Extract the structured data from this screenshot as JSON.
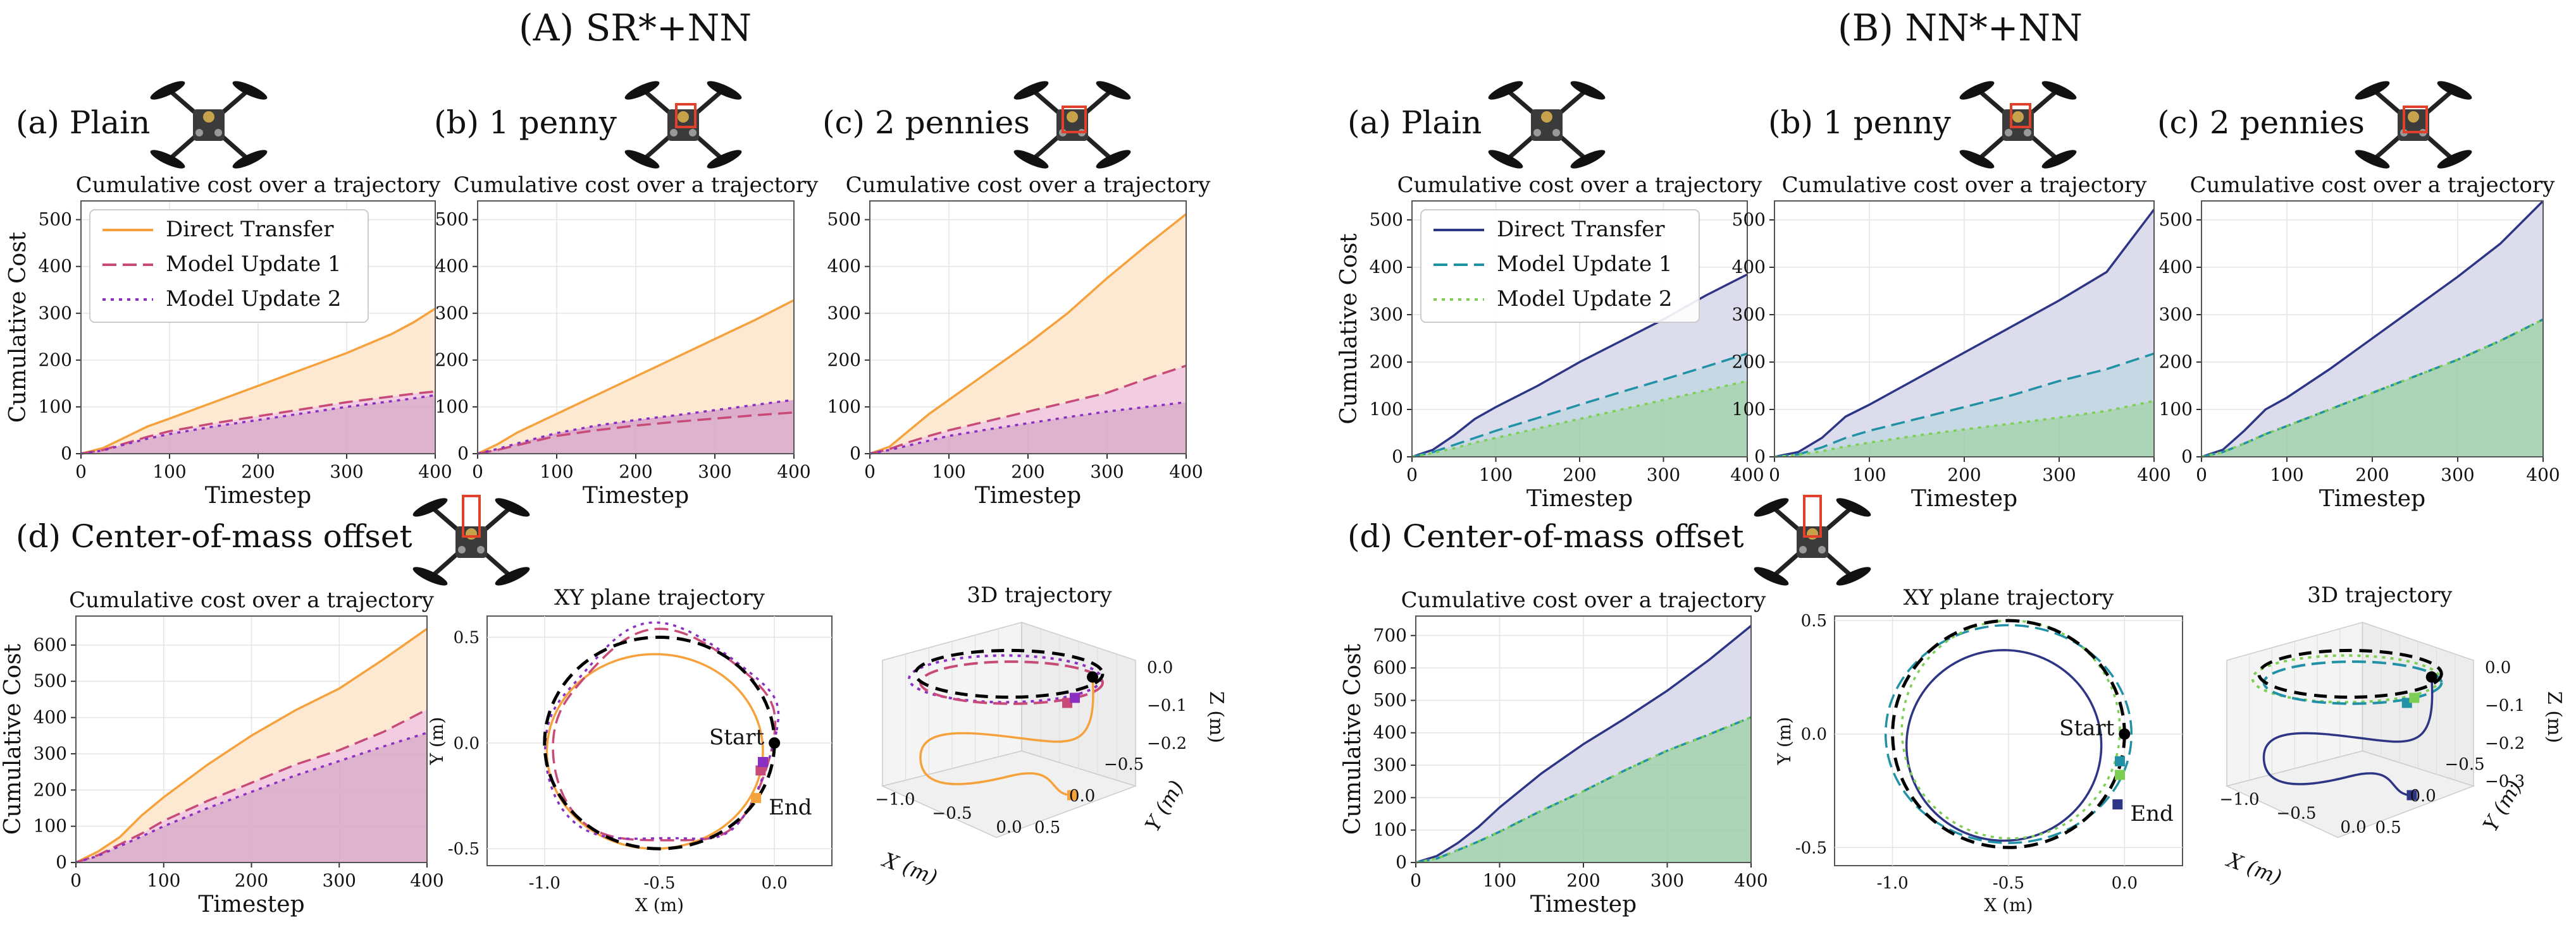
{
  "colors": {
    "A": {
      "direct": "#f6a23c",
      "mu1": "#c84a78",
      "mu2": "#8a2fc2",
      "fill1": "#fde9d2",
      "fill2": "#f2cde1",
      "fill3": "#d8a6c6"
    },
    "B": {
      "direct": "#2d3584",
      "mu1": "#2191a6",
      "mu2": "#7ccf52",
      "fill1": "#dcdcec",
      "fill2": "#c6d8e4",
      "fill3": "#9dcdaa"
    },
    "startMarker": "#000000",
    "endA": [
      "#f6a23c",
      "#c84a78",
      "#8a2fc2"
    ],
    "endB": [
      "#2d3584",
      "#2191a6",
      "#7ccf52"
    ]
  },
  "panels": {
    "A": {
      "title": "(A) SR*+NN"
    },
    "B": {
      "title": "(B) NN*+NN"
    },
    "subtitles": {
      "plain": "(a) Plain",
      "penny1": "(b) 1 penny",
      "penny2": "(c) 2 pennies",
      "com": "(d) Center-of-mass offset"
    }
  },
  "drone_icons": [
    "quadrotor-plain",
    "quadrotor-1-penny",
    "quadrotor-2-pennies",
    "quadrotor-com-offset"
  ],
  "chart_data": [
    {
      "id": "A-plain",
      "type": "area",
      "title": "Cumulative cost over a trajectory",
      "xlabel": "Timestep",
      "ylabel": "Cumulative Cost",
      "xlim": [
        0,
        400
      ],
      "ylim": [
        0,
        540
      ],
      "xticks": [
        0,
        100,
        200,
        300,
        400
      ],
      "yticks": [
        0,
        100,
        200,
        300,
        400,
        500
      ],
      "legend": [
        "Direct Transfer",
        "Model Update 1",
        "Model Update 2"
      ],
      "legend_position": "upper-left",
      "x": [
        0,
        25,
        50,
        75,
        100,
        150,
        200,
        250,
        300,
        350,
        375,
        400
      ],
      "series": [
        {
          "name": "Direct Transfer",
          "values": [
            0,
            12,
            35,
            58,
            75,
            110,
            145,
            180,
            215,
            255,
            280,
            310
          ]
        },
        {
          "name": "Model Update 1",
          "values": [
            0,
            8,
            22,
            36,
            48,
            65,
            80,
            95,
            110,
            122,
            128,
            133
          ]
        },
        {
          "name": "Model Update 2",
          "values": [
            0,
            7,
            20,
            32,
            42,
            58,
            72,
            86,
            100,
            112,
            118,
            125
          ]
        }
      ]
    },
    {
      "id": "A-penny1",
      "type": "area",
      "title": "Cumulative cost over a trajectory",
      "xlabel": "Timestep",
      "xlim": [
        0,
        400
      ],
      "ylim": [
        0,
        540
      ],
      "xticks": [
        0,
        100,
        200,
        300,
        400
      ],
      "yticks": [
        0,
        100,
        200,
        300,
        400,
        500
      ],
      "x": [
        0,
        25,
        50,
        75,
        100,
        150,
        200,
        250,
        300,
        350,
        400
      ],
      "series": [
        {
          "name": "Direct Transfer",
          "values": [
            0,
            20,
            45,
            65,
            85,
            125,
            165,
            205,
            245,
            285,
            328
          ]
        },
        {
          "name": "Model Update 1",
          "values": [
            0,
            8,
            18,
            28,
            38,
            50,
            60,
            68,
            75,
            82,
            88
          ]
        },
        {
          "name": "Model Update 2",
          "values": [
            0,
            10,
            22,
            33,
            44,
            60,
            72,
            82,
            93,
            104,
            115
          ]
        }
      ]
    },
    {
      "id": "A-penny2",
      "type": "area",
      "title": "Cumulative cost over a trajectory",
      "xlabel": "Timestep",
      "xlim": [
        0,
        400
      ],
      "ylim": [
        0,
        540
      ],
      "xticks": [
        0,
        100,
        200,
        300,
        400
      ],
      "yticks": [
        0,
        100,
        200,
        300,
        400,
        500
      ],
      "x": [
        0,
        25,
        50,
        75,
        100,
        150,
        200,
        250,
        300,
        350,
        400
      ],
      "series": [
        {
          "name": "Direct Transfer",
          "values": [
            0,
            15,
            50,
            85,
            115,
            175,
            235,
            300,
            375,
            445,
            512
          ]
        },
        {
          "name": "Model Update 1",
          "values": [
            0,
            10,
            25,
            38,
            50,
            70,
            90,
            110,
            130,
            160,
            188
          ]
        },
        {
          "name": "Model Update 2",
          "values": [
            0,
            8,
            18,
            28,
            38,
            52,
            65,
            78,
            90,
            100,
            110
          ]
        }
      ]
    },
    {
      "id": "B-plain",
      "type": "area",
      "title": "Cumulative cost over a trajectory",
      "xlabel": "Timestep",
      "ylabel": "Cumulative Cost",
      "xlim": [
        0,
        400
      ],
      "ylim": [
        0,
        540
      ],
      "xticks": [
        0,
        100,
        200,
        300,
        400
      ],
      "yticks": [
        0,
        100,
        200,
        300,
        400,
        500
      ],
      "legend": [
        "Direct Transfer",
        "Model Update 1",
        "Model Update 2"
      ],
      "legend_position": "upper-left",
      "x": [
        0,
        25,
        50,
        75,
        100,
        150,
        200,
        250,
        300,
        350,
        400
      ],
      "series": [
        {
          "name": "Direct Transfer",
          "values": [
            0,
            15,
            45,
            80,
            105,
            150,
            200,
            245,
            290,
            340,
            385
          ]
        },
        {
          "name": "Model Update 1",
          "values": [
            0,
            10,
            25,
            40,
            55,
            82,
            110,
            137,
            163,
            190,
            218
          ]
        },
        {
          "name": "Model Update 2",
          "values": [
            0,
            8,
            18,
            30,
            40,
            60,
            80,
            100,
            120,
            140,
            160
          ]
        }
      ]
    },
    {
      "id": "B-penny1",
      "type": "area",
      "title": "Cumulative cost over a trajectory",
      "xlabel": "Timestep",
      "xlim": [
        0,
        400
      ],
      "ylim": [
        0,
        540
      ],
      "xticks": [
        0,
        100,
        200,
        300,
        400
      ],
      "yticks": [
        0,
        100,
        200,
        300,
        400,
        500
      ],
      "x": [
        0,
        25,
        50,
        75,
        100,
        150,
        200,
        250,
        300,
        350,
        400
      ],
      "series": [
        {
          "name": "Direct Transfer",
          "values": [
            0,
            10,
            40,
            85,
            110,
            165,
            220,
            275,
            330,
            390,
            522
          ]
        },
        {
          "name": "Model Update 1",
          "values": [
            0,
            5,
            20,
            40,
            55,
            80,
            105,
            130,
            160,
            185,
            218
          ]
        },
        {
          "name": "Model Update 2",
          "values": [
            0,
            4,
            12,
            22,
            30,
            45,
            58,
            70,
            83,
            97,
            118
          ]
        }
      ]
    },
    {
      "id": "B-penny2",
      "type": "area",
      "title": "Cumulative cost over a trajectory",
      "xlabel": "Timestep",
      "xlim": [
        0,
        400
      ],
      "ylim": [
        0,
        540
      ],
      "xticks": [
        0,
        100,
        200,
        300,
        400
      ],
      "yticks": [
        0,
        100,
        200,
        300,
        400,
        500
      ],
      "x": [
        0,
        25,
        50,
        75,
        100,
        150,
        200,
        250,
        300,
        350,
        400
      ],
      "series": [
        {
          "name": "Direct Transfer",
          "values": [
            0,
            15,
            55,
            100,
            125,
            185,
            250,
            315,
            380,
            450,
            540
          ]
        },
        {
          "name": "Model Update 1",
          "values": [
            0,
            10,
            28,
            48,
            65,
            100,
            135,
            170,
            205,
            245,
            290
          ]
        },
        {
          "name": "Model Update 2",
          "values": [
            0,
            10,
            28,
            48,
            65,
            100,
            135,
            170,
            205,
            245,
            290
          ]
        }
      ]
    },
    {
      "id": "A-com",
      "type": "area",
      "title": "Cumulative cost over a trajectory",
      "xlabel": "Timestep",
      "ylabel": "Cumulative Cost",
      "xlim": [
        0,
        400
      ],
      "ylim": [
        0,
        680
      ],
      "xticks": [
        0,
        100,
        200,
        300,
        400
      ],
      "yticks": [
        0,
        100,
        200,
        300,
        400,
        500,
        600
      ],
      "x": [
        0,
        25,
        50,
        75,
        100,
        150,
        200,
        250,
        300,
        350,
        400
      ],
      "series": [
        {
          "name": "Direct Transfer",
          "values": [
            0,
            30,
            70,
            130,
            180,
            270,
            350,
            420,
            480,
            560,
            645
          ]
        },
        {
          "name": "Model Update 1",
          "values": [
            0,
            20,
            50,
            80,
            115,
            170,
            220,
            270,
            310,
            360,
            422
          ]
        },
        {
          "name": "Model Update 2",
          "values": [
            0,
            18,
            45,
            72,
            100,
            150,
            195,
            240,
            280,
            320,
            358
          ]
        }
      ]
    },
    {
      "id": "B-com",
      "type": "area",
      "title": "Cumulative cost over a trajectory",
      "xlabel": "Timestep",
      "ylabel": "Cumulative Cost",
      "xlim": [
        0,
        400
      ],
      "ylim": [
        0,
        760
      ],
      "xticks": [
        0,
        100,
        200,
        300,
        400
      ],
      "yticks": [
        0,
        100,
        200,
        300,
        400,
        500,
        600,
        700
      ],
      "x": [
        0,
        25,
        50,
        75,
        100,
        150,
        200,
        250,
        300,
        350,
        400
      ],
      "series": [
        {
          "name": "Direct Transfer",
          "values": [
            0,
            20,
            60,
            110,
            170,
            275,
            365,
            445,
            530,
            625,
            730
          ]
        },
        {
          "name": "Model Update 1",
          "values": [
            0,
            12,
            38,
            65,
            95,
            160,
            220,
            285,
            345,
            395,
            448
          ]
        },
        {
          "name": "Model Update 2",
          "values": [
            0,
            12,
            38,
            65,
            95,
            160,
            220,
            285,
            345,
            395,
            448
          ]
        }
      ]
    },
    {
      "id": "A-xy",
      "type": "line",
      "title": "XY plane trajectory",
      "xlabel": "X (m)",
      "ylabel": "Y (m)",
      "xlim": [
        -1.25,
        0.25
      ],
      "ylim": [
        -0.58,
        0.6
      ],
      "xticks": [
        -1.0,
        -0.5,
        0.0
      ],
      "yticks": [
        -0.5,
        0.0,
        0.5
      ],
      "annotations": [
        "Start",
        "End"
      ],
      "reference": {
        "name": "reference",
        "center": [
          -0.5,
          0
        ],
        "radius": 0.5
      },
      "start": [
        0.0,
        0.0
      ],
      "ends": [
        [
          -0.08,
          -0.26
        ],
        [
          -0.06,
          -0.13
        ],
        [
          -0.05,
          -0.09
        ]
      ]
    },
    {
      "id": "B-xy",
      "type": "line",
      "title": "XY plane trajectory",
      "xlabel": "X (m)",
      "ylabel": "Y (m)",
      "xlim": [
        -1.25,
        0.25
      ],
      "ylim": [
        -0.58,
        0.52
      ],
      "xticks": [
        -1.0,
        -0.5,
        0.0
      ],
      "yticks": [
        -0.5,
        0.0,
        0.5
      ],
      "annotations": [
        "Start",
        "End"
      ],
      "reference": {
        "name": "reference",
        "center": [
          -0.5,
          0
        ],
        "radius": 0.5
      },
      "start": [
        0.0,
        0.0
      ],
      "ends": [
        [
          -0.03,
          -0.31
        ],
        [
          -0.02,
          -0.12
        ],
        [
          -0.02,
          -0.18
        ]
      ]
    },
    {
      "id": "A-3d",
      "type": "line",
      "title": "3D trajectory",
      "xlabel": "X (m)",
      "ylabel": "Y (m)",
      "zlabel": "Z (m)",
      "xticks": [
        "−1.0",
        "−0.5",
        "0.0"
      ],
      "yticks": [
        "0.5",
        "0.0",
        "−0.5"
      ],
      "zticks": [
        "0.0",
        "−0.1",
        "−0.2"
      ]
    },
    {
      "id": "B-3d",
      "type": "line",
      "title": "3D trajectory",
      "xlabel": "X (m)",
      "ylabel": "Y (m)",
      "zlabel": "Z (m)",
      "xticks": [
        "−1.0",
        "−0.5",
        "0.0"
      ],
      "yticks": [
        "0.5",
        "0.0",
        "−0.5"
      ],
      "zticks": [
        "0.0",
        "−0.1",
        "−0.2",
        "−0.3"
      ]
    }
  ]
}
